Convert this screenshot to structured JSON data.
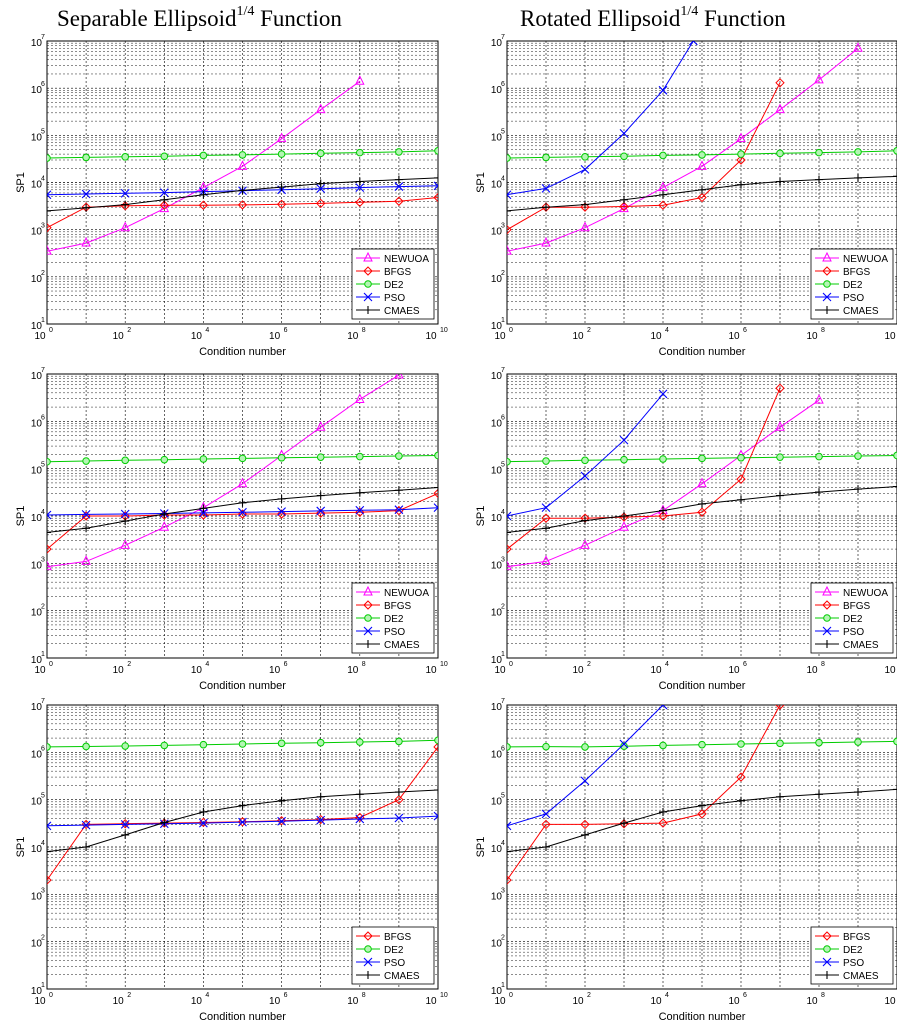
{
  "titles": {
    "left": {
      "main": "Separable Ellipsoid",
      "sup": "1/4",
      "suffix": " Function"
    },
    "right": {
      "main": "Rotated Ellipsoid",
      "sup": "1/4",
      "suffix": " Function"
    }
  },
  "styles": {
    "NEWUOA": {
      "color": "#ff00ff",
      "marker": "triangle"
    },
    "BFGS": {
      "color": "#ff0000",
      "marker": "diamond"
    },
    "DE2": {
      "color": "#00cc00",
      "marker": "circle"
    },
    "PSO": {
      "color": "#0000ff",
      "marker": "x"
    },
    "CMAES": {
      "color": "#000000",
      "marker": "plus"
    }
  },
  "chart_data": [
    {
      "type": "line",
      "xlabel": "Condition number",
      "ylabel": "SP1",
      "x_scale": "log",
      "y_scale": "log",
      "xlim": [
        1,
        10000000000
      ],
      "ylim": [
        10,
        10000000
      ],
      "x_ticks": [
        "10^0",
        "10^2",
        "10^4",
        "10^6",
        "10^8",
        "10^10"
      ],
      "y_ticks": [
        "10^1",
        "10^2",
        "10^3",
        "10^4",
        "10^5",
        "10^6",
        "10^7"
      ],
      "legend": "bottom-right",
      "grid": true,
      "series": [
        {
          "name": "NEWUOA",
          "x": [
            1,
            10,
            100,
            1000,
            10000,
            100000,
            1000000,
            10000000,
            100000000
          ],
          "y": [
            350,
            520,
            1100,
            2800,
            7800,
            22000,
            85000,
            350000,
            1400000
          ]
        },
        {
          "name": "BFGS",
          "x": [
            1,
            10,
            100,
            1000,
            10000,
            100000,
            1000000,
            10000000,
            100000000,
            1000000000,
            10000000000
          ],
          "y": [
            1100,
            3000,
            3200,
            3300,
            3300,
            3350,
            3450,
            3600,
            3800,
            4000,
            4800
          ]
        },
        {
          "name": "DE2",
          "x": [
            1,
            10,
            100,
            1000,
            10000,
            100000,
            1000000,
            10000000,
            100000000,
            1000000000,
            10000000000
          ],
          "y": [
            33000,
            34000,
            35000,
            36000,
            37500,
            38500,
            40000,
            41500,
            43000,
            44500,
            47000
          ]
        },
        {
          "name": "PSO",
          "x": [
            1,
            10,
            100,
            1000,
            10000,
            100000,
            1000000,
            10000000,
            100000000,
            1000000000,
            10000000000
          ],
          "y": [
            5500,
            5700,
            5900,
            6100,
            6400,
            6700,
            7000,
            7400,
            7800,
            8200,
            8500
          ]
        },
        {
          "name": "CMAES",
          "x": [
            1,
            10,
            100,
            1000,
            10000,
            100000,
            1000000,
            10000000,
            100000000,
            1000000000,
            10000000000
          ],
          "y": [
            2500,
            2900,
            3400,
            4300,
            5500,
            6800,
            8000,
            9500,
            10500,
            11500,
            12500
          ]
        }
      ]
    },
    {
      "type": "line",
      "xlabel": "Condition number",
      "ylabel": "SP1",
      "x_scale": "log",
      "y_scale": "log",
      "xlim": [
        1,
        10000000000
      ],
      "ylim": [
        10,
        10000000
      ],
      "x_ticks": [
        "10^0",
        "10^2",
        "10^4",
        "10^6",
        "10^8",
        "10^10"
      ],
      "y_ticks": [
        "10^1",
        "10^2",
        "10^3",
        "10^4",
        "10^5",
        "10^6",
        "10^7"
      ],
      "legend": "bottom-right",
      "grid": true,
      "series": [
        {
          "name": "NEWUOA",
          "x": [
            1,
            10,
            100,
            1000,
            10000,
            100000,
            1000000,
            10000000,
            100000000,
            1000000000
          ],
          "y": [
            350,
            520,
            1100,
            2800,
            7800,
            22000,
            85000,
            350000,
            1500000,
            7000000
          ]
        },
        {
          "name": "BFGS",
          "x": [
            1,
            10,
            100,
            1000,
            10000,
            100000,
            1000000,
            10000000
          ],
          "y": [
            1000,
            3000,
            3000,
            3100,
            3300,
            4800,
            30000,
            1300000
          ]
        },
        {
          "name": "DE2",
          "x": [
            1,
            10,
            100,
            1000,
            10000,
            100000,
            1000000,
            10000000,
            100000000,
            1000000000,
            10000000000
          ],
          "y": [
            33000,
            34000,
            35000,
            36000,
            37500,
            38500,
            40000,
            41500,
            43000,
            44500,
            47000
          ]
        },
        {
          "name": "PSO",
          "x": [
            1,
            10,
            100,
            1000,
            10000,
            60000
          ],
          "y": [
            5500,
            7500,
            19000,
            110000,
            900000,
            10000000
          ]
        },
        {
          "name": "CMAES",
          "x": [
            1,
            10,
            100,
            1000,
            10000,
            100000,
            1000000,
            10000000,
            100000000,
            1000000000,
            10000000000
          ],
          "y": [
            2500,
            3000,
            3400,
            4300,
            5500,
            7000,
            9000,
            10500,
            11500,
            12500,
            13500
          ]
        }
      ]
    },
    {
      "type": "line",
      "xlabel": "Condition number",
      "ylabel": "SP1",
      "x_scale": "log",
      "y_scale": "log",
      "xlim": [
        1,
        10000000000
      ],
      "ylim": [
        10,
        10000000
      ],
      "x_ticks": [
        "10^0",
        "10^2",
        "10^4",
        "10^6",
        "10^8",
        "10^10"
      ],
      "y_ticks": [
        "10^1",
        "10^2",
        "10^3",
        "10^4",
        "10^5",
        "10^6",
        "10^7"
      ],
      "legend": "bottom-right",
      "grid": true,
      "series": [
        {
          "name": "NEWUOA",
          "x": [
            1,
            10,
            100,
            1000,
            10000,
            100000,
            1000000,
            10000000,
            100000000,
            1000000000
          ],
          "y": [
            850,
            1100,
            2400,
            5800,
            15000,
            48000,
            190000,
            750000,
            2900000,
            9500000
          ]
        },
        {
          "name": "BFGS",
          "x": [
            1,
            10,
            100,
            1000,
            10000,
            100000,
            1000000,
            10000000,
            100000000,
            1000000000,
            10000000000
          ],
          "y": [
            2000,
            10000,
            10000,
            10500,
            10500,
            11000,
            11000,
            11500,
            12000,
            13000,
            30000
          ]
        },
        {
          "name": "DE2",
          "x": [
            1,
            10,
            100,
            1000,
            10000,
            100000,
            1000000,
            10000000,
            100000000,
            1000000000,
            10000000000
          ],
          "y": [
            140000,
            145000,
            150000,
            155000,
            160000,
            165000,
            170000,
            175000,
            180000,
            185000,
            190000
          ]
        },
        {
          "name": "PSO",
          "x": [
            1,
            10,
            100,
            1000,
            10000,
            100000,
            1000000,
            10000000,
            100000000,
            1000000000,
            10000000000
          ],
          "y": [
            10500,
            10800,
            11000,
            11300,
            11600,
            12000,
            12400,
            12800,
            13200,
            13600,
            15000
          ]
        },
        {
          "name": "CMAES",
          "x": [
            1,
            10,
            100,
            1000,
            10000,
            100000,
            1000000,
            10000000,
            100000000,
            1000000000,
            10000000000
          ],
          "y": [
            4500,
            5500,
            7800,
            11000,
            14500,
            19000,
            23000,
            27000,
            31000,
            35000,
            40000
          ]
        }
      ]
    },
    {
      "type": "line",
      "xlabel": "Condition number",
      "ylabel": "SP1",
      "x_scale": "log",
      "y_scale": "log",
      "xlim": [
        1,
        10000000000
      ],
      "ylim": [
        10,
        10000000
      ],
      "x_ticks": [
        "10^0",
        "10^2",
        "10^4",
        "10^6",
        "10^8",
        "10^10"
      ],
      "y_ticks": [
        "10^1",
        "10^2",
        "10^3",
        "10^4",
        "10^5",
        "10^6",
        "10^7"
      ],
      "legend": "bottom-right",
      "grid": true,
      "series": [
        {
          "name": "NEWUOA",
          "x": [
            1,
            10,
            100,
            1000,
            10000,
            100000,
            1000000,
            10000000,
            100000000
          ],
          "y": [
            850,
            1100,
            2400,
            5800,
            13000,
            48000,
            190000,
            750000,
            2800000
          ]
        },
        {
          "name": "BFGS",
          "x": [
            1,
            10,
            100,
            1000,
            10000,
            100000,
            1000000,
            10000000
          ],
          "y": [
            2000,
            9000,
            9000,
            9500,
            10000,
            12000,
            60000,
            5000000
          ]
        },
        {
          "name": "DE2",
          "x": [
            1,
            10,
            100,
            1000,
            10000,
            100000,
            1000000,
            10000000,
            100000000,
            1000000000,
            10000000000
          ],
          "y": [
            140000,
            145000,
            150000,
            155000,
            160000,
            165000,
            170000,
            175000,
            180000,
            185000,
            190000
          ]
        },
        {
          "name": "PSO",
          "x": [
            1,
            10,
            100,
            1000,
            10000
          ],
          "y": [
            10000,
            15000,
            70000,
            400000,
            3800000
          ]
        },
        {
          "name": "CMAES",
          "x": [
            1,
            10,
            100,
            1000,
            10000,
            100000,
            1000000,
            10000000,
            100000000,
            1000000000,
            10000000000
          ],
          "y": [
            4500,
            5500,
            8000,
            10000,
            13000,
            18000,
            22000,
            27000,
            32000,
            37000,
            42000
          ]
        }
      ]
    },
    {
      "type": "line",
      "xlabel": "Condition number",
      "ylabel": "SP1",
      "x_scale": "log",
      "y_scale": "log",
      "xlim": [
        1,
        10000000000
      ],
      "ylim": [
        10,
        10000000
      ],
      "x_ticks": [
        "10^0",
        "10^2",
        "10^4",
        "10^6",
        "10^8",
        "10^10"
      ],
      "y_ticks": [
        "10^1",
        "10^2",
        "10^3",
        "10^4",
        "10^5",
        "10^6",
        "10^7"
      ],
      "legend": "bottom-right",
      "grid": true,
      "series": [
        {
          "name": "BFGS",
          "x": [
            1,
            10,
            100,
            1000,
            10000,
            100000,
            1000000,
            10000000,
            100000000,
            1000000000,
            10000000000
          ],
          "y": [
            2000,
            30000,
            31000,
            32000,
            33000,
            34000,
            36000,
            38000,
            42000,
            100000,
            1300000
          ]
        },
        {
          "name": "DE2",
          "x": [
            1,
            10,
            100,
            1000,
            10000,
            100000,
            1000000,
            10000000,
            100000000,
            1000000000,
            10000000000
          ],
          "y": [
            1300000,
            1330000,
            1360000,
            1400000,
            1450000,
            1500000,
            1550000,
            1600000,
            1650000,
            1700000,
            1800000
          ]
        },
        {
          "name": "PSO",
          "x": [
            1,
            10,
            100,
            1000,
            10000,
            100000,
            1000000,
            10000000,
            100000000,
            1000000000,
            10000000000
          ],
          "y": [
            28000,
            29000,
            30000,
            31000,
            32000,
            33500,
            35000,
            37000,
            39000,
            41000,
            45000
          ]
        },
        {
          "name": "CMAES",
          "x": [
            1,
            10,
            100,
            1000,
            10000,
            100000,
            1000000,
            10000000,
            100000000,
            1000000000,
            10000000000
          ],
          "y": [
            8000,
            10000,
            18000,
            33000,
            55000,
            75000,
            95000,
            115000,
            130000,
            145000,
            160000
          ]
        }
      ]
    },
    {
      "type": "line",
      "xlabel": "Condition number",
      "ylabel": "SP1",
      "x_scale": "log",
      "y_scale": "log",
      "xlim": [
        1,
        10000000000
      ],
      "ylim": [
        10,
        10000000
      ],
      "x_ticks": [
        "10^0",
        "10^2",
        "10^4",
        "10^6",
        "10^8",
        "10^10"
      ],
      "y_ticks": [
        "10^1",
        "10^2",
        "10^3",
        "10^4",
        "10^5",
        "10^6",
        "10^7"
      ],
      "legend": "bottom-right",
      "grid": true,
      "series": [
        {
          "name": "BFGS",
          "x": [
            1,
            10,
            100,
            1000,
            10000,
            100000,
            1000000,
            10000000
          ],
          "y": [
            2000,
            30000,
            30000,
            31000,
            32000,
            50000,
            300000,
            10000000
          ]
        },
        {
          "name": "DE2",
          "x": [
            1,
            10,
            100,
            1000,
            10000,
            100000,
            1000000,
            10000000,
            100000000,
            1000000000,
            10000000000
          ],
          "y": [
            1300000,
            1320000,
            1300000,
            1350000,
            1400000,
            1450000,
            1500000,
            1550000,
            1600000,
            1650000,
            1700000
          ]
        },
        {
          "name": "PSO",
          "x": [
            1,
            10,
            100,
            1000,
            10000
          ],
          "y": [
            28000,
            50000,
            250000,
            1500000,
            10000000
          ]
        },
        {
          "name": "CMAES",
          "x": [
            1,
            10,
            100,
            1000,
            10000,
            100000,
            1000000,
            10000000,
            100000000,
            1000000000,
            10000000000
          ],
          "y": [
            8000,
            10000,
            18000,
            32000,
            55000,
            75000,
            95000,
            115000,
            130000,
            145000,
            165000
          ]
        }
      ]
    }
  ]
}
